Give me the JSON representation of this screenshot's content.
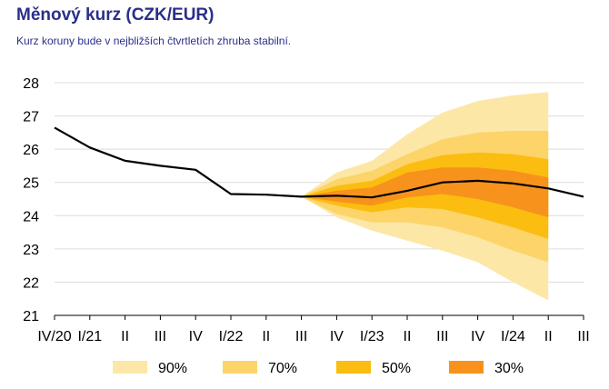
{
  "title": "Měnový kurz (CZK/EUR)",
  "subtitle": "Kurz koruny bude v nejbližších čtvrtletích zhruba stabilní.",
  "chart_data": {
    "type": "line",
    "x": [
      "IV/20",
      "I/21",
      "II",
      "III",
      "IV",
      "I/22",
      "II",
      "III",
      "IV",
      "I/23",
      "II",
      "III",
      "IV",
      "I/24",
      "II",
      "III"
    ],
    "ylim": [
      21,
      28
    ],
    "yticks": [
      21,
      22,
      23,
      24,
      25,
      26,
      27,
      28
    ],
    "grid": true,
    "series": [
      {
        "name": "",
        "color": "#000000",
        "values": [
          26.65,
          26.05,
          25.65,
          25.5,
          25.38,
          24.65,
          24.63,
          24.57,
          24.6,
          24.55,
          24.75,
          25.0,
          25.05,
          24.97,
          24.82,
          24.57
        ]
      }
    ],
    "fan": {
      "start_index": 7,
      "bands": [
        {
          "name": "90%",
          "color": "#fde7a6",
          "upper": [
            24.57,
            25.3,
            25.65,
            26.45,
            27.1,
            27.45,
            27.62,
            27.72
          ],
          "lower": [
            24.57,
            23.95,
            23.55,
            23.25,
            22.95,
            22.6,
            22.0,
            21.45
          ]
        },
        {
          "name": "70%",
          "color": "#fcd46a",
          "upper": [
            24.57,
            25.1,
            25.35,
            25.85,
            26.3,
            26.5,
            26.55,
            26.55
          ],
          "lower": [
            24.57,
            24.05,
            23.8,
            23.8,
            23.65,
            23.35,
            22.95,
            22.6
          ]
        },
        {
          "name": "50%",
          "color": "#fbbd10",
          "upper": [
            24.57,
            24.9,
            25.05,
            25.55,
            25.82,
            25.9,
            25.85,
            25.7
          ],
          "lower": [
            24.57,
            24.3,
            24.1,
            24.25,
            24.2,
            23.95,
            23.65,
            23.3
          ]
        },
        {
          "name": "30%",
          "color": "#f7931c",
          "upper": [
            24.57,
            24.75,
            24.85,
            25.3,
            25.45,
            25.45,
            25.35,
            25.15
          ],
          "lower": [
            24.57,
            24.42,
            24.3,
            24.55,
            24.65,
            24.5,
            24.25,
            23.95
          ]
        }
      ]
    },
    "legend": {
      "position": "bottom",
      "items": [
        "90%",
        "70%",
        "50%",
        "30%"
      ]
    }
  }
}
